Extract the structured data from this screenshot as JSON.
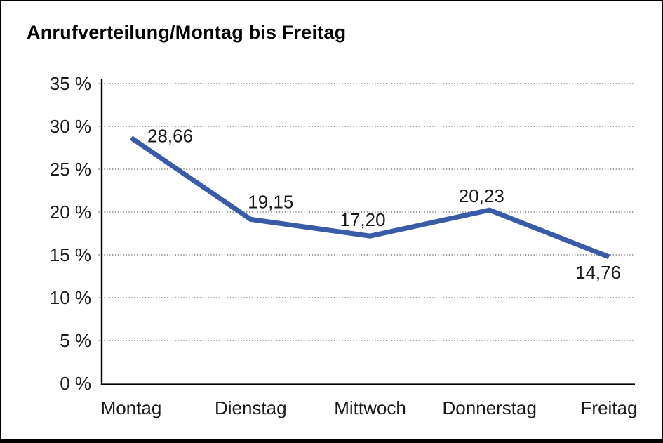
{
  "chart_data": {
    "type": "line",
    "title": "Anrufverteilung/Montag bis Freitag",
    "categories": [
      "Montag",
      "Dienstag",
      "Mittwoch",
      "Donnerstag",
      "Freitag"
    ],
    "series": [
      {
        "name": "Anrufverteilung",
        "values": [
          28.66,
          19.15,
          17.2,
          20.23,
          14.76
        ]
      }
    ],
    "value_labels": [
      "28,66",
      "19,15",
      "17,20",
      "20,23",
      "14,76"
    ],
    "xlabel": "",
    "ylabel": "",
    "ylim": [
      0,
      35
    ],
    "ytick_step": 5,
    "ytick_labels": [
      "0 %",
      "5 %",
      "10 %",
      "15 %",
      "20 %",
      "25 %",
      "30 %",
      "35 %"
    ],
    "grid": "horizontal-dotted",
    "legend_position": "none",
    "line_color": "#3A5BA8",
    "grid_color": "#5f5f5f",
    "axis_color": "#000000",
    "text_color": "#1a1a1a"
  }
}
